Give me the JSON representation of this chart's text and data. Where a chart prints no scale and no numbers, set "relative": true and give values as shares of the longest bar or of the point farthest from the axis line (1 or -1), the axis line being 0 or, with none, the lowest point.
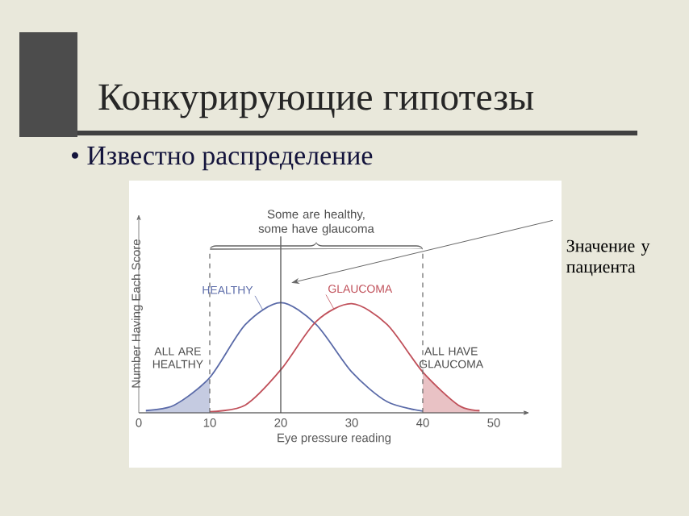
{
  "chart_data": {
    "type": "line",
    "title": "Конкурирующие гипотезы",
    "subtitle": "• Известно распределение",
    "xlabel": "Eye pressure reading",
    "ylabel": "Number Having Each Score",
    "relative": true,
    "xlim": [
      0,
      55
    ],
    "xticks": [
      0,
      10,
      20,
      30,
      40,
      50
    ],
    "series": [
      {
        "name": "HEALTHY",
        "color": "#5a6aa8",
        "x": [
          1,
          5,
          10,
          15,
          20,
          25,
          30,
          35,
          40
        ],
        "values": [
          0.02,
          0.07,
          0.32,
          0.8,
          1,
          0.8,
          0.37,
          0.1,
          0.015
        ]
      },
      {
        "name": "GLAUCOMA",
        "color": "#c0505a",
        "x": [
          10,
          15,
          20,
          25,
          30,
          35,
          40,
          45,
          48
        ],
        "values": [
          0.01,
          0.07,
          0.39,
          0.83,
          0.99,
          0.8,
          0.37,
          0.07,
          0.02
        ]
      },
      {
        "type": "area",
        "color": "#5a6aa8",
        "x": [
          1,
          5,
          10
        ],
        "values": [
          0.02,
          0.07,
          0.32
        ]
      },
      {
        "type": "area",
        "color": "#c0505a",
        "x": [
          40,
          45,
          48
        ],
        "values": [
          0.37,
          0.07,
          0.02
        ]
      }
    ],
    "ref_lines": [
      {
        "axis": "x",
        "value": 10,
        "line_style": "dashed",
        "color": "#666666"
      },
      {
        "axis": "x",
        "value": 20,
        "line_style": "solid",
        "color": "#444444"
      },
      {
        "axis": "x",
        "value": 40,
        "line_style": "dashed",
        "color": "#666666"
      }
    ],
    "annotations": [
      "Some are healthy, some have glaucoma",
      "ALL ARE HEALTHY",
      "ALL HAVE GLAUCOMA",
      "Значение у пациента"
    ]
  }
}
